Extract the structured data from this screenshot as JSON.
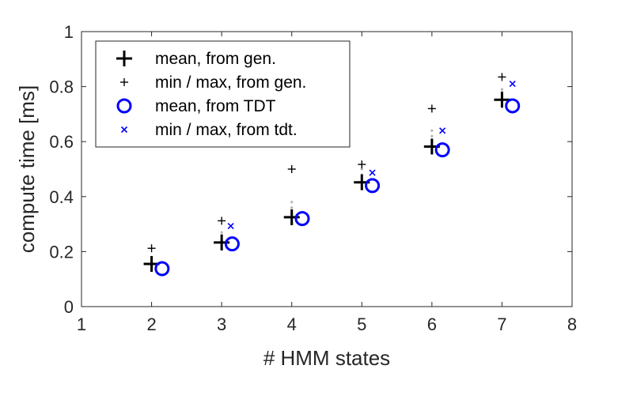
{
  "chart_data": {
    "type": "scatter",
    "title": "",
    "xlabel": "# HMM states",
    "ylabel": "compute time [ms]",
    "xlim": [
      1,
      8
    ],
    "ylim": [
      0,
      1
    ],
    "xticks": [
      "1",
      "2",
      "3",
      "4",
      "5",
      "6",
      "7",
      "8"
    ],
    "yticks": [
      "0",
      "0.2",
      "0.4",
      "0.6",
      "0.8",
      "1"
    ],
    "grid": false,
    "legend_position": "top-left",
    "colors": {
      "gen": "#000000",
      "tdt": "#0000ff",
      "samples": "#b3b3b3"
    },
    "series": [
      {
        "name": "mean, from gen.",
        "marker": "plus-large",
        "color": "#000000",
        "x": [
          2,
          3,
          4,
          5,
          6,
          7
        ],
        "y": [
          0.155,
          0.233,
          0.325,
          0.452,
          0.582,
          0.752
        ]
      },
      {
        "name": "min / max, from gen.",
        "marker": "plus-small",
        "color": "#000000",
        "x": [
          2,
          3,
          4,
          5,
          6,
          7
        ],
        "y": [
          0.212,
          0.312,
          0.5,
          0.517,
          0.72,
          0.835
        ]
      },
      {
        "name": "mean, from TDT",
        "marker": "circle",
        "color": "#0000ff",
        "x": [
          2.15,
          3.15,
          4.15,
          5.15,
          6.15,
          7.15
        ],
        "y": [
          0.138,
          0.228,
          0.32,
          0.44,
          0.57,
          0.73
        ]
      },
      {
        "name": "min / max, from tdt.",
        "marker": "x",
        "color": "#0000ff",
        "x": [
          3.13,
          5.15,
          6.15,
          7.15
        ],
        "y": [
          0.293,
          0.487,
          0.64,
          0.81
        ]
      }
    ],
    "sample_spread": [
      {
        "x": 2,
        "y": [
          0.14,
          0.15,
          0.16,
          0.17,
          0.18
        ]
      },
      {
        "x": 3,
        "y": [
          0.21,
          0.22,
          0.24,
          0.26,
          0.27
        ]
      },
      {
        "x": 4,
        "y": [
          0.3,
          0.32,
          0.34,
          0.36,
          0.38
        ]
      },
      {
        "x": 5,
        "y": [
          0.43,
          0.45,
          0.46,
          0.48,
          0.5
        ]
      },
      {
        "x": 6,
        "y": [
          0.56,
          0.58,
          0.6,
          0.62,
          0.64
        ]
      },
      {
        "x": 7,
        "y": [
          0.73,
          0.75,
          0.77,
          0.78,
          0.79
        ]
      }
    ]
  }
}
